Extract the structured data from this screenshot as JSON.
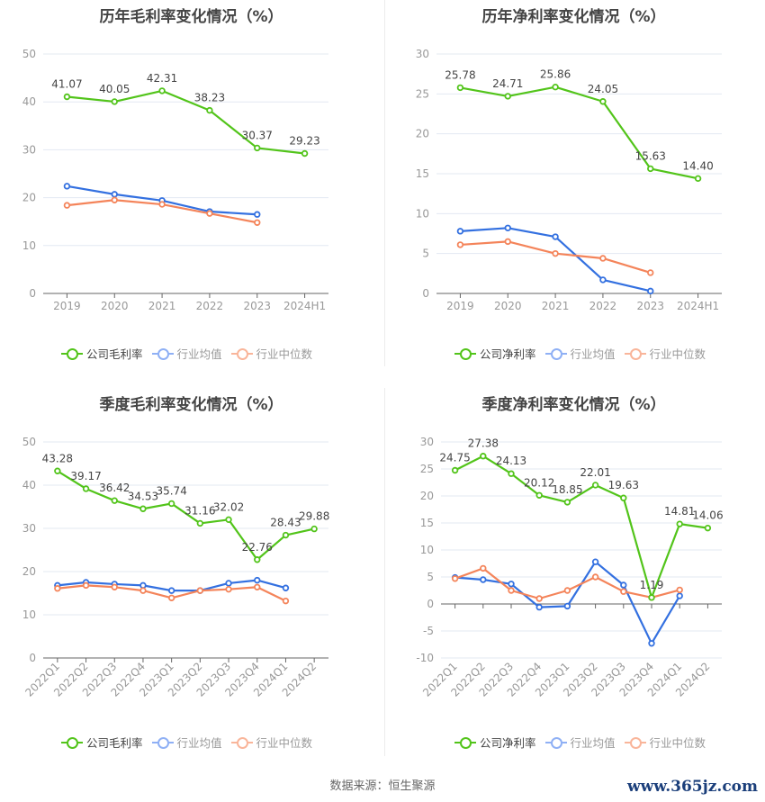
{
  "colors": {
    "company": "#52c41a",
    "avg": "#3370e0",
    "median": "#f4845a",
    "grid": "#e3e8f2",
    "axis": "#666666",
    "tick": "#999999",
    "label": "#444444"
  },
  "legend_colors": {
    "company": "#52c41a",
    "avg": "#8fb0f5",
    "median": "#f9b59a"
  },
  "footer": {
    "source": "数据来源：恒生聚源",
    "watermark": "www.365jz.com"
  },
  "chart_data": [
    {
      "type": "line",
      "title": "历年毛利率变化情况（%）",
      "categories": [
        "2019",
        "2020",
        "2021",
        "2022",
        "2023",
        "2024H1"
      ],
      "ylim": [
        0,
        50
      ],
      "yticks": [
        0,
        10,
        20,
        30,
        40,
        50
      ],
      "grid": true,
      "legend_position": "bottom",
      "series": [
        {
          "name": "公司毛利率",
          "values": [
            41.07,
            40.05,
            42.31,
            38.23,
            30.37,
            29.23
          ],
          "labels": [
            "41.07",
            "40.05",
            "42.31",
            "38.23",
            "30.37",
            "29.23"
          ]
        },
        {
          "name": "行业均值",
          "values": [
            22.4,
            20.7,
            19.4,
            17.1,
            16.5,
            null
          ]
        },
        {
          "name": "行业中位数",
          "values": [
            18.4,
            19.5,
            18.6,
            16.7,
            14.8,
            null
          ]
        }
      ]
    },
    {
      "type": "line",
      "title": "历年净利率变化情况（%）",
      "categories": [
        "2019",
        "2020",
        "2021",
        "2022",
        "2023",
        "2024H1"
      ],
      "ylim": [
        0,
        30
      ],
      "yticks": [
        0,
        5,
        10,
        15,
        20,
        25,
        30
      ],
      "grid": true,
      "legend_position": "bottom",
      "series": [
        {
          "name": "公司净利率",
          "values": [
            25.78,
            24.71,
            25.86,
            24.05,
            15.63,
            14.4
          ],
          "labels": [
            "25.78",
            "24.71",
            "25.86",
            "24.05",
            "15.63",
            "14.40"
          ]
        },
        {
          "name": "行业均值",
          "values": [
            7.8,
            8.2,
            7.1,
            1.7,
            0.3,
            null
          ]
        },
        {
          "name": "行业中位数",
          "values": [
            6.1,
            6.5,
            5.0,
            4.4,
            2.6,
            null
          ]
        }
      ]
    },
    {
      "type": "line",
      "title": "季度毛利率变化情况（%）",
      "categories": [
        "2022Q1",
        "2022Q2",
        "2022Q3",
        "2022Q4",
        "2023Q1",
        "2023Q2",
        "2023Q3",
        "2023Q4",
        "2024Q1",
        "2024Q2"
      ],
      "ylim": [
        0,
        50
      ],
      "yticks": [
        0,
        10,
        20,
        30,
        40,
        50
      ],
      "grid": true,
      "legend_position": "bottom",
      "series": [
        {
          "name": "公司毛利率",
          "values": [
            43.28,
            39.17,
            36.42,
            34.53,
            35.74,
            31.16,
            32.02,
            22.76,
            28.43,
            29.88
          ],
          "labels": [
            "43.28",
            "39.17",
            "36.42",
            "34.53",
            "35.74",
            "31.16",
            "32.02",
            "22.76",
            "28.43",
            "29.88"
          ]
        },
        {
          "name": "行业均值",
          "values": [
            16.8,
            17.5,
            17.1,
            16.8,
            15.6,
            15.6,
            17.3,
            18.0,
            16.2,
            null
          ]
        },
        {
          "name": "行业中位数",
          "values": [
            16.1,
            16.8,
            16.4,
            15.6,
            13.9,
            15.6,
            15.9,
            16.4,
            13.2,
            null
          ]
        }
      ]
    },
    {
      "type": "line",
      "title": "季度净利率变化情况（%）",
      "categories": [
        "2022Q1",
        "2022Q2",
        "2022Q3",
        "2022Q4",
        "2023Q1",
        "2023Q2",
        "2023Q3",
        "2023Q4",
        "2024Q1",
        "2024Q2"
      ],
      "ylim": [
        -10,
        30
      ],
      "yticks": [
        -10,
        -5,
        0,
        5,
        10,
        15,
        20,
        25,
        30
      ],
      "grid": true,
      "legend_position": "bottom",
      "series": [
        {
          "name": "公司净利率",
          "values": [
            24.75,
            27.38,
            24.13,
            20.12,
            18.85,
            22.01,
            19.63,
            1.19,
            14.81,
            14.06
          ],
          "labels": [
            "24.75",
            "27.38",
            "24.13",
            "20.12",
            "18.85",
            "22.01",
            "19.63",
            "1.19",
            "14.81",
            "14.06"
          ]
        },
        {
          "name": "行业均值",
          "values": [
            4.9,
            4.5,
            3.7,
            -0.6,
            -0.4,
            7.8,
            3.5,
            -7.3,
            1.5,
            null
          ]
        },
        {
          "name": "行业中位数",
          "values": [
            4.7,
            6.6,
            2.5,
            1.0,
            2.5,
            5.0,
            2.3,
            1.2,
            2.6,
            null
          ]
        }
      ]
    }
  ]
}
